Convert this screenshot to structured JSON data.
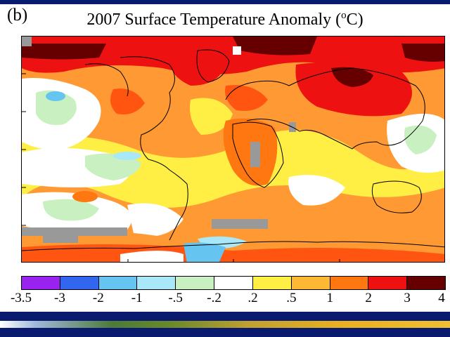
{
  "panel": {
    "label": "(b)"
  },
  "title": {
    "main": "2007 Surface Temperature Anomaly (",
    "sup": "o",
    "end": "C)"
  },
  "colors": {
    "frame": "#0a1a6e",
    "dark_red": "#660000",
    "red": "#ee1111",
    "orange_red": "#ff5511",
    "orange": "#ff9933",
    "yellow": "#ffee44",
    "white": "#ffffff",
    "light_green": "#c8f0c0",
    "light_cyan": "#a8e8f8",
    "light_blue": "#66c4f0",
    "blue": "#3366ee",
    "purple": "#9922ee",
    "missing": "#999999",
    "coast": "#000000"
  },
  "colorbar": {
    "ticks": [
      "-3.5",
      "-3",
      "-2",
      "-1",
      "-.5",
      "-.2",
      ".2",
      ".5",
      "1",
      "2",
      "3",
      "4"
    ],
    "swatches": [
      "#9922ee",
      "#3366ee",
      "#66c4f0",
      "#a8e8f8",
      "#c8f0c0",
      "#ffffff",
      "#ffee44",
      "#ffb833",
      "#ff7711",
      "#ee1111",
      "#660000"
    ]
  }
}
